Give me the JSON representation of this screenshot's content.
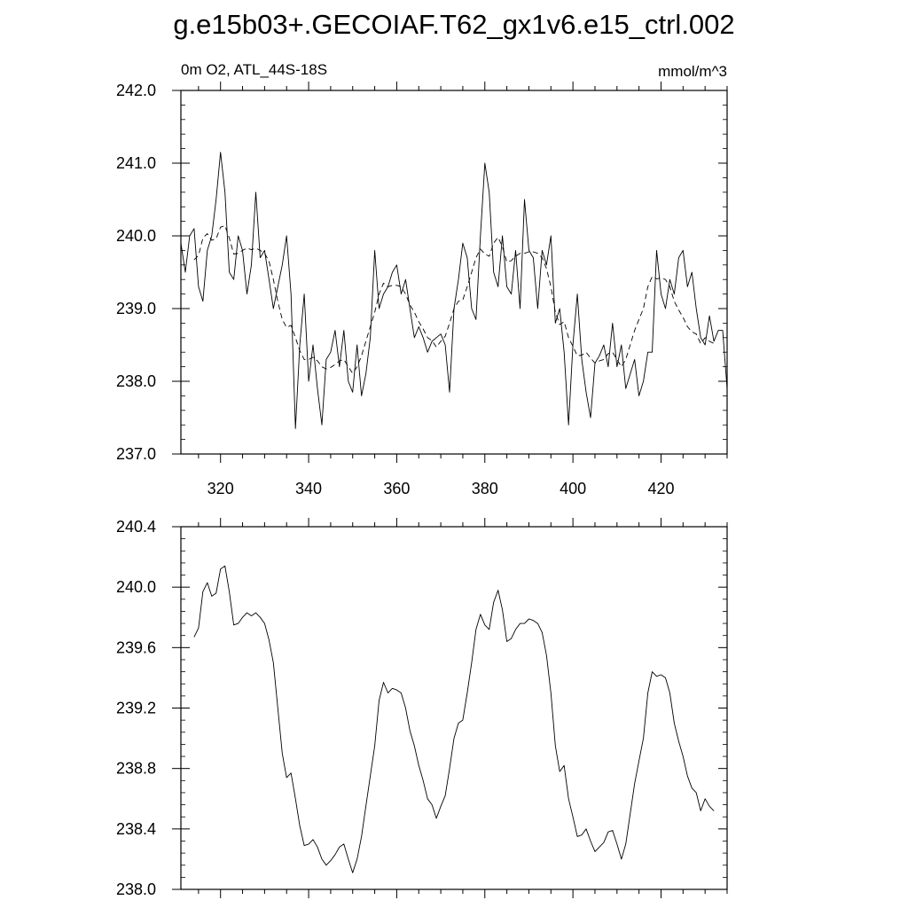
{
  "title": "g.e15b03+.GECOIAF.T62_gx1v6.e15_ctrl.002",
  "chart_data": [
    {
      "type": "line",
      "subtitle_left": "0m O2, ATL_44S-18S",
      "subtitle_right": "mmol/m^3",
      "xlim": [
        311,
        435
      ],
      "ylim": [
        237.0,
        242.0
      ],
      "x_ticks": [
        320,
        340,
        360,
        380,
        400,
        420
      ],
      "x_tick_labels": [
        "320",
        "340",
        "360",
        "380",
        "400",
        "420"
      ],
      "y_ticks": [
        237.0,
        238.0,
        239.0,
        240.0,
        241.0,
        242.0
      ],
      "y_tick_labels": [
        "237.0",
        "238.0",
        "239.0",
        "240.0",
        "241.0",
        "242.0"
      ],
      "grid": false,
      "series": [
        {
          "style": "solid",
          "color": "#000000",
          "x": [
            311,
            312,
            313,
            314,
            315,
            316,
            317,
            318,
            319,
            320,
            321,
            322,
            323,
            324,
            325,
            326,
            327,
            328,
            329,
            330,
            331,
            332,
            333,
            334,
            335,
            336,
            337,
            338,
            339,
            340,
            341,
            342,
            343,
            344,
            345,
            346,
            347,
            348,
            349,
            350,
            351,
            352,
            353,
            354,
            355,
            356,
            357,
            358,
            359,
            360,
            361,
            362,
            363,
            364,
            365,
            366,
            367,
            368,
            369,
            370,
            371,
            372,
            373,
            374,
            375,
            376,
            377,
            378,
            379,
            380,
            381,
            382,
            383,
            384,
            385,
            386,
            387,
            388,
            389,
            390,
            391,
            392,
            393,
            394,
            395,
            396,
            397,
            398,
            399,
            400,
            401,
            402,
            403,
            404,
            405,
            406,
            407,
            408,
            409,
            410,
            411,
            412,
            413,
            414,
            415,
            416,
            417,
            418,
            419,
            420,
            421,
            422,
            423,
            424,
            425,
            426,
            427,
            428,
            429,
            430,
            431,
            432,
            433,
            434,
            435
          ],
          "y": [
            239.9,
            239.5,
            240.0,
            240.1,
            239.3,
            239.1,
            239.8,
            240.0,
            240.5,
            241.15,
            240.6,
            239.5,
            239.4,
            240.0,
            239.8,
            239.2,
            239.6,
            240.6,
            239.7,
            239.8,
            239.4,
            239.0,
            239.3,
            239.6,
            240.0,
            239.2,
            237.35,
            238.5,
            239.2,
            238.0,
            238.5,
            237.9,
            237.4,
            238.3,
            238.4,
            238.7,
            238.2,
            238.7,
            238.0,
            237.85,
            238.5,
            237.8,
            238.1,
            238.6,
            239.8,
            239.0,
            239.2,
            239.3,
            239.5,
            239.6,
            239.2,
            239.4,
            239.0,
            238.6,
            238.75,
            238.6,
            238.4,
            238.55,
            238.6,
            238.65,
            238.5,
            237.85,
            239.0,
            239.4,
            239.9,
            239.7,
            239.0,
            238.85,
            240.0,
            241.0,
            240.6,
            239.5,
            239.3,
            240.0,
            239.3,
            239.2,
            239.8,
            239.0,
            240.5,
            239.8,
            239.7,
            239.0,
            239.8,
            239.6,
            240.0,
            238.8,
            239.0,
            238.4,
            237.4,
            238.5,
            239.2,
            238.3,
            237.85,
            237.5,
            238.25,
            238.35,
            238.5,
            238.2,
            238.8,
            238.2,
            238.5,
            237.9,
            238.1,
            238.3,
            237.8,
            238.0,
            238.4,
            238.4,
            239.8,
            239.2,
            239.0,
            239.4,
            239.2,
            239.7,
            239.8,
            239.3,
            239.5,
            239.0,
            238.6,
            238.5,
            238.9,
            238.55,
            238.7,
            238.7,
            237.9
          ]
        },
        {
          "style": "dashed",
          "color": "#000000",
          "x": [
            314,
            315,
            316,
            317,
            318,
            319,
            320,
            321,
            322,
            323,
            324,
            325,
            326,
            327,
            328,
            329,
            330,
            331,
            332,
            333,
            334,
            335,
            336,
            337,
            338,
            339,
            340,
            341,
            342,
            343,
            344,
            345,
            346,
            347,
            348,
            349,
            350,
            351,
            352,
            353,
            354,
            355,
            356,
            357,
            358,
            359,
            360,
            361,
            362,
            363,
            364,
            365,
            366,
            367,
            368,
            369,
            370,
            371,
            372,
            373,
            374,
            375,
            376,
            377,
            378,
            379,
            380,
            381,
            382,
            383,
            384,
            385,
            386,
            387,
            388,
            389,
            390,
            391,
            392,
            393,
            394,
            395,
            396,
            397,
            398,
            399,
            400,
            401,
            402,
            403,
            404,
            405,
            406,
            407,
            408,
            409,
            410,
            411,
            412,
            413,
            414,
            415,
            416,
            417,
            418,
            419,
            420,
            421,
            422,
            423,
            424,
            425,
            426,
            427,
            428,
            429,
            430,
            431,
            432
          ],
          "y": [
            239.67,
            239.73,
            239.97,
            240.03,
            239.94,
            239.96,
            240.12,
            240.14,
            239.97,
            239.75,
            239.76,
            239.8,
            239.83,
            239.81,
            239.83,
            239.8,
            239.76,
            239.65,
            239.4,
            239.1,
            238.85,
            238.74,
            238.77,
            238.6,
            238.42,
            238.3,
            238.3,
            238.33,
            238.28,
            238.2,
            238.17,
            238.19,
            238.23,
            238.28,
            238.3,
            238.2,
            238.11,
            238.2,
            238.35,
            238.55,
            238.75,
            238.95,
            239.2,
            239.35,
            239.3,
            239.32,
            239.32,
            239.3,
            239.2,
            239.05,
            238.95,
            238.82,
            238.72,
            238.6,
            238.56,
            238.47,
            238.55,
            238.62,
            238.8,
            239.0,
            239.1,
            239.12,
            239.3,
            239.5,
            239.7,
            239.82,
            239.75,
            239.72,
            239.9,
            239.98,
            239.85,
            239.64,
            239.66,
            239.72,
            239.76,
            239.76,
            239.78,
            239.78,
            239.76,
            239.7,
            239.55,
            239.3,
            238.95,
            238.78,
            238.82,
            238.6,
            238.48,
            238.35,
            238.36,
            238.4,
            238.32,
            238.25,
            238.28,
            238.3,
            238.38,
            238.4,
            238.3,
            238.2,
            238.3,
            238.5,
            238.7,
            238.85,
            239.0,
            239.3,
            239.44,
            239.41,
            239.42,
            239.4,
            239.3,
            239.1,
            238.98,
            238.88,
            238.75,
            238.68,
            238.65,
            238.52,
            238.6,
            238.55,
            238.52
          ]
        }
      ]
    },
    {
      "type": "line",
      "xlim": [
        311,
        435
      ],
      "ylim": [
        238.0,
        240.4
      ],
      "x_ticks": [
        320,
        340,
        360,
        380,
        400,
        420
      ],
      "x_tick_labels": [],
      "y_ticks": [
        238.0,
        238.4,
        238.8,
        239.2,
        239.6,
        240.0,
        240.4
      ],
      "y_tick_labels": [
        "238.0",
        "238.4",
        "238.8",
        "239.2",
        "239.6",
        "240.0",
        "240.4"
      ],
      "grid": false,
      "series": [
        {
          "style": "solid",
          "color": "#000000",
          "x": [
            314,
            315,
            316,
            317,
            318,
            319,
            320,
            321,
            322,
            323,
            324,
            325,
            326,
            327,
            328,
            329,
            330,
            331,
            332,
            333,
            334,
            335,
            336,
            337,
            338,
            339,
            340,
            341,
            342,
            343,
            344,
            345,
            346,
            347,
            348,
            349,
            350,
            351,
            352,
            353,
            354,
            355,
            356,
            357,
            358,
            359,
            360,
            361,
            362,
            363,
            364,
            365,
            366,
            367,
            368,
            369,
            370,
            371,
            372,
            373,
            374,
            375,
            376,
            377,
            378,
            379,
            380,
            381,
            382,
            383,
            384,
            385,
            386,
            387,
            388,
            389,
            390,
            391,
            392,
            393,
            394,
            395,
            396,
            397,
            398,
            399,
            400,
            401,
            402,
            403,
            404,
            405,
            406,
            407,
            408,
            409,
            410,
            411,
            412,
            413,
            414,
            415,
            416,
            417,
            418,
            419,
            420,
            421,
            422,
            423,
            424,
            425,
            426,
            427,
            428,
            429,
            430,
            431,
            432
          ],
          "y": [
            239.67,
            239.73,
            239.97,
            240.03,
            239.94,
            239.96,
            240.12,
            240.14,
            239.97,
            239.75,
            239.76,
            239.8,
            239.83,
            239.81,
            239.83,
            239.8,
            239.76,
            239.65,
            239.5,
            239.2,
            238.9,
            238.74,
            238.77,
            238.6,
            238.42,
            238.29,
            238.3,
            238.33,
            238.28,
            238.2,
            238.16,
            238.19,
            238.23,
            238.28,
            238.3,
            238.2,
            238.11,
            238.2,
            238.35,
            238.55,
            238.75,
            238.95,
            239.25,
            239.37,
            239.3,
            239.33,
            239.32,
            239.3,
            239.2,
            239.05,
            238.95,
            238.82,
            238.72,
            238.6,
            238.56,
            238.47,
            238.55,
            238.62,
            238.8,
            239.0,
            239.1,
            239.12,
            239.3,
            239.5,
            239.72,
            239.82,
            239.75,
            239.72,
            239.9,
            239.98,
            239.85,
            239.64,
            239.66,
            239.72,
            239.76,
            239.76,
            239.79,
            239.78,
            239.76,
            239.7,
            239.55,
            239.3,
            238.95,
            238.78,
            238.82,
            238.6,
            238.48,
            238.35,
            238.36,
            238.4,
            238.32,
            238.25,
            238.28,
            238.31,
            238.38,
            238.39,
            238.3,
            238.2,
            238.3,
            238.5,
            238.7,
            238.85,
            239.0,
            239.3,
            239.44,
            239.41,
            239.42,
            239.4,
            239.3,
            239.1,
            238.98,
            238.88,
            238.75,
            238.67,
            238.64,
            238.52,
            238.6,
            238.55,
            238.52
          ]
        }
      ]
    }
  ]
}
